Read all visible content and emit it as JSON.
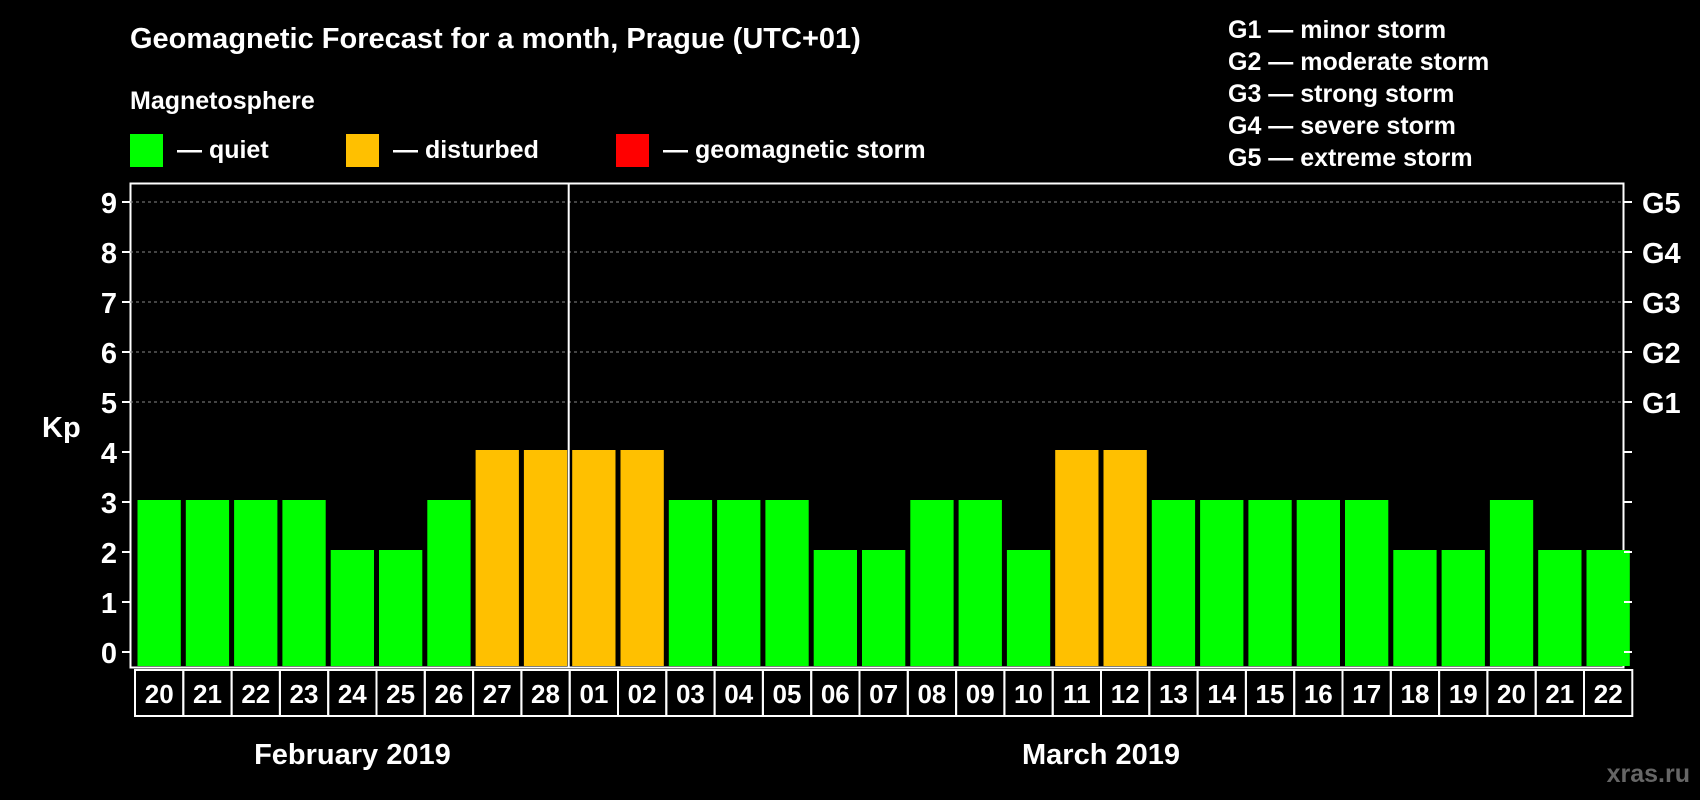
{
  "chart_data": {
    "type": "bar",
    "title": "Geomagnetic Forecast for a month, Prague (UTC+01)",
    "legend": {
      "title": "Magnetosphere",
      "items": [
        {
          "label": "— quiet",
          "color": "#00ff00"
        },
        {
          "label": "— disturbed",
          "color": "#ffc000"
        },
        {
          "label": "— geomagnetic storm",
          "color": "#ff0000"
        }
      ]
    },
    "storm_scale": [
      "G1 — minor storm",
      "G2 — moderate storm",
      "G3 — strong storm",
      "G4 — severe storm",
      "G5 — extreme storm"
    ],
    "ylabel": "Kp",
    "ylim": [
      0,
      9
    ],
    "y_ticks": [
      "0",
      "1",
      "2",
      "3",
      "4",
      "5",
      "6",
      "7",
      "8",
      "9"
    ],
    "right_ticks": [
      {
        "value": 5,
        "label": "G1"
      },
      {
        "value": 6,
        "label": "G2"
      },
      {
        "value": 7,
        "label": "G3"
      },
      {
        "value": 8,
        "label": "G4"
      },
      {
        "value": 9,
        "label": "G5"
      }
    ],
    "categories": [
      "20",
      "21",
      "22",
      "23",
      "24",
      "25",
      "26",
      "27",
      "28",
      "01",
      "02",
      "03",
      "04",
      "05",
      "06",
      "07",
      "08",
      "09",
      "10",
      "11",
      "12",
      "13",
      "14",
      "15",
      "16",
      "17",
      "18",
      "19",
      "20",
      "21",
      "22"
    ],
    "values": [
      3,
      3,
      3,
      3,
      2,
      2,
      3,
      4,
      4,
      4,
      4,
      3,
      3,
      3,
      2,
      2,
      3,
      3,
      2,
      4,
      4,
      3,
      3,
      3,
      3,
      3,
      2,
      2,
      3,
      2,
      2
    ],
    "level_colors": {
      "quiet": "#00ff00",
      "disturbed": "#ffc000",
      "storm": "#ff0000"
    },
    "months": [
      {
        "label": "February 2019",
        "start_index": 0,
        "end_index": 8
      },
      {
        "label": "March 2019",
        "start_index": 9,
        "end_index": 30
      }
    ],
    "month_divider_index": 9
  },
  "watermark": "xras.ru"
}
